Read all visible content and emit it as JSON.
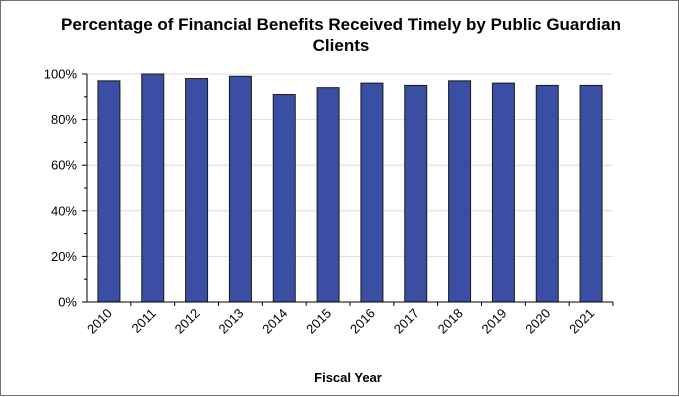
{
  "chart_data": {
    "type": "bar",
    "title_lines": [
      "Percentage of Financial Benefits Received Timely by Public Guardian",
      "Clients"
    ],
    "xlabel": "Fiscal Year",
    "ylabel": "",
    "categories": [
      "2010",
      "2011",
      "2012",
      "2013",
      "2014",
      "2015",
      "2016",
      "2017",
      "2018",
      "2019",
      "2020",
      "2021"
    ],
    "values": [
      97,
      100,
      98,
      99,
      91,
      94,
      96,
      95,
      97,
      96,
      95,
      95
    ],
    "ylim": [
      0,
      100
    ],
    "yticks": [
      0,
      20,
      40,
      60,
      80,
      100
    ],
    "ytick_labels": [
      "0%",
      "20%",
      "40%",
      "60%",
      "80%",
      "100%"
    ],
    "grid": true,
    "bar_color": "#3a4ea3",
    "grid_color": "#dcdcdc"
  }
}
